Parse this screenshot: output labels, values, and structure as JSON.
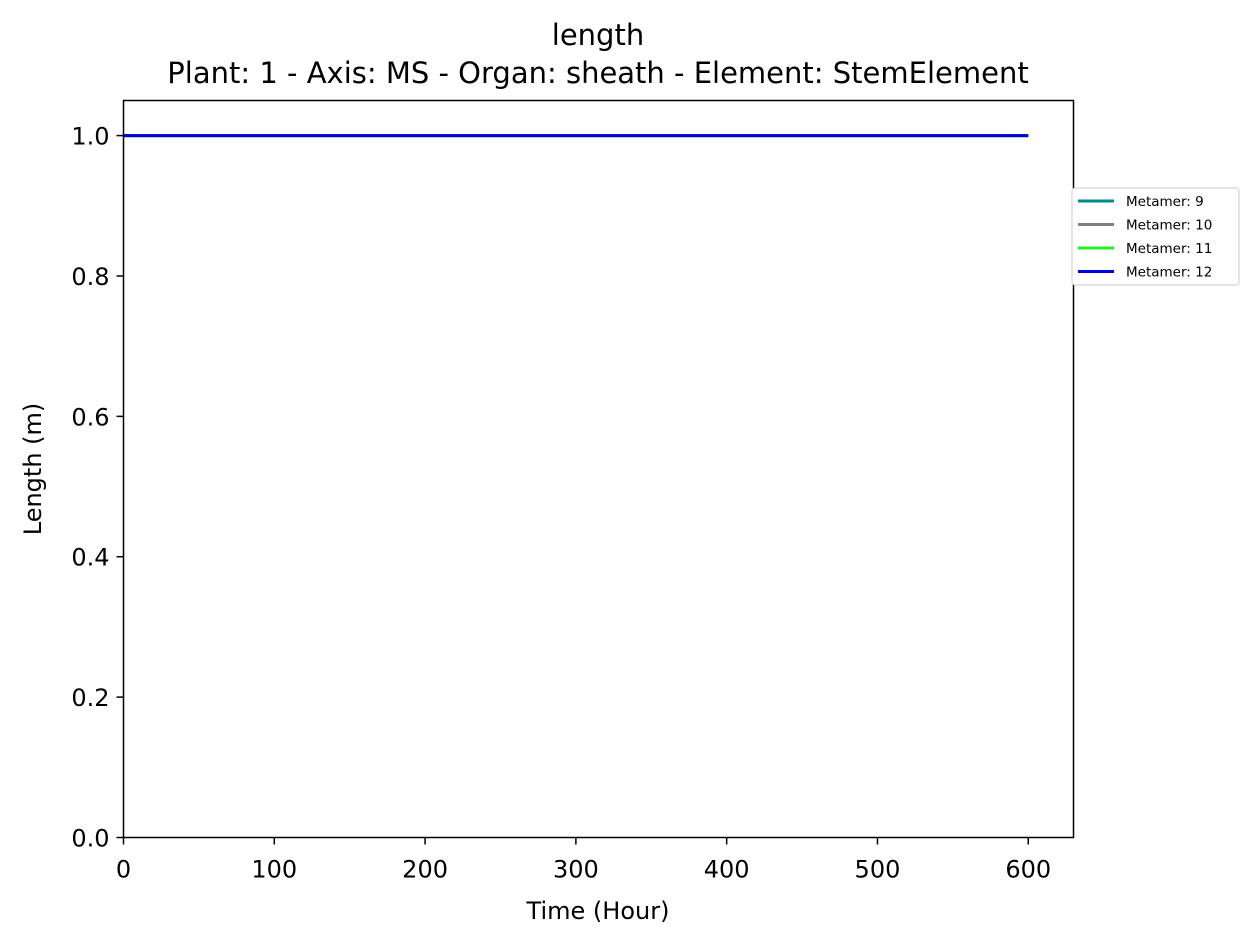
{
  "chart_data": {
    "type": "line",
    "title": "length",
    "subtitle": "Plant: 1 - Axis: MS - Organ: sheath - Element: StemElement",
    "xlabel": "Time (Hour)",
    "ylabel": "Length (m)",
    "xlim": [
      0,
      630
    ],
    "ylim": [
      0,
      1.05
    ],
    "xticks": [
      0,
      100,
      200,
      300,
      400,
      500,
      600
    ],
    "yticks": [
      0.0,
      0.2,
      0.4,
      0.6,
      0.8,
      1.0
    ],
    "xtick_labels": [
      "0",
      "100",
      "200",
      "300",
      "400",
      "500",
      "600"
    ],
    "ytick_labels": [
      "0.0",
      "0.2",
      "0.4",
      "0.6",
      "0.8",
      "1.0"
    ],
    "grid": false,
    "legend_position": "right, outside plot area",
    "series": [
      {
        "name": "Metamer: 9",
        "color": "#008b8b",
        "x": [
          0,
          600
        ],
        "y": [
          1.0,
          1.0
        ]
      },
      {
        "name": "Metamer: 10",
        "color": "#808080",
        "x": [
          0,
          600
        ],
        "y": [
          1.0,
          1.0
        ]
      },
      {
        "name": "Metamer: 11",
        "color": "#22ee22",
        "x": [
          0,
          600
        ],
        "y": [
          1.0,
          1.0
        ]
      },
      {
        "name": "Metamer: 12",
        "color": "#0000dd",
        "x": [
          0,
          600
        ],
        "y": [
          1.0,
          1.0
        ]
      }
    ]
  }
}
